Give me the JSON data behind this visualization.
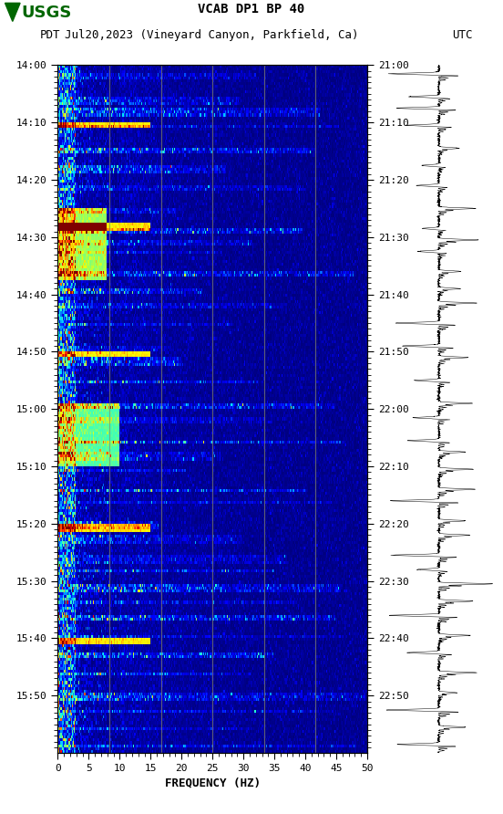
{
  "title_line1": "VCAB DP1 BP 40",
  "title_line2_left": "PDT",
  "title_line2_mid": "Jul20,2023 (Vineyard Canyon, Parkfield, Ca)",
  "title_line2_right": "UTC",
  "xlabel": "FREQUENCY (HZ)",
  "freq_min": 0,
  "freq_max": 50,
  "freq_ticks": [
    0,
    5,
    10,
    15,
    20,
    25,
    30,
    35,
    40,
    45,
    50
  ],
  "time_labels_left": [
    "14:00",
    "14:10",
    "14:20",
    "14:30",
    "14:40",
    "14:50",
    "15:00",
    "15:10",
    "15:20",
    "15:30",
    "15:40",
    "15:50"
  ],
  "time_labels_right": [
    "21:00",
    "21:10",
    "21:20",
    "21:30",
    "21:40",
    "21:50",
    "22:00",
    "22:10",
    "22:20",
    "22:30",
    "22:40",
    "22:50"
  ],
  "n_time_steps": 240,
  "n_freq_bins": 300,
  "bg_color": "white",
  "spectrogram_cmap": "jet",
  "vertical_lines_freq": [
    8.33,
    16.67,
    25.0,
    33.33,
    41.67
  ],
  "vertical_line_color": "#888866",
  "vertical_line_alpha": 0.7,
  "seismogram_line_color": "black",
  "title_fontsize": 10,
  "subtitle_fontsize": 9,
  "tick_fontsize": 8,
  "label_fontsize": 9,
  "usgs_color": "#006600"
}
